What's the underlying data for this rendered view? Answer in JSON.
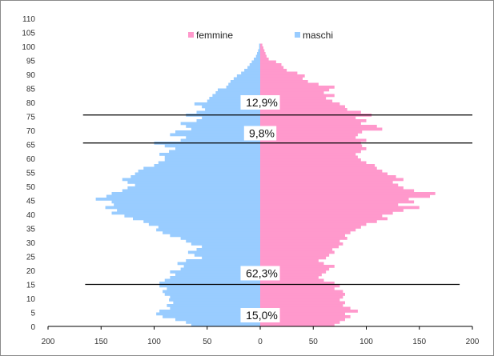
{
  "chart_data": {
    "type": "bar",
    "orientation": "horizontal",
    "subtype": "population-pyramid",
    "title": "",
    "xlabel": "",
    "ylabel": "",
    "xlim": [
      -200,
      200
    ],
    "ylim": [
      0,
      110
    ],
    "x_ticks": [
      "200",
      "150",
      "100",
      "50",
      "0",
      "50",
      "100",
      "150",
      "200"
    ],
    "y_ticks": [
      "0",
      "5",
      "10",
      "15",
      "20",
      "25",
      "30",
      "35",
      "40",
      "45",
      "50",
      "55",
      "60",
      "65",
      "70",
      "75",
      "80",
      "85",
      "90",
      "95",
      "100",
      "105",
      "110"
    ],
    "legend": {
      "placement": "top-center",
      "entries": [
        "femmine",
        "maschi"
      ]
    },
    "colors": {
      "femmine": "#ff99cc",
      "maschi": "#99ccff",
      "lines": "#000000"
    },
    "ages": [
      0,
      1,
      2,
      3,
      4,
      5,
      6,
      7,
      8,
      9,
      10,
      11,
      12,
      13,
      14,
      15,
      16,
      17,
      18,
      19,
      20,
      21,
      22,
      23,
      24,
      25,
      26,
      27,
      28,
      29,
      30,
      31,
      32,
      33,
      34,
      35,
      36,
      37,
      38,
      39,
      40,
      41,
      42,
      43,
      44,
      45,
      46,
      47,
      48,
      49,
      50,
      51,
      52,
      53,
      54,
      55,
      56,
      57,
      58,
      59,
      60,
      61,
      62,
      63,
      64,
      65,
      66,
      67,
      68,
      69,
      70,
      71,
      72,
      73,
      74,
      75,
      76,
      77,
      78,
      79,
      80,
      81,
      82,
      83,
      84,
      85,
      86,
      87,
      88,
      89,
      90,
      91,
      92,
      93,
      94,
      95,
      96,
      97,
      98,
      99,
      100
    ],
    "series": [
      {
        "name": "maschi",
        "values": [
          65,
          70,
          80,
          92,
          98,
          95,
          85,
          88,
          82,
          86,
          85,
          90,
          92,
          88,
          95,
          95,
          90,
          85,
          80,
          85,
          75,
          72,
          78,
          70,
          55,
          62,
          68,
          60,
          55,
          65,
          70,
          75,
          85,
          92,
          98,
          96,
          105,
          110,
          120,
          128,
          140,
          135,
          146,
          138,
          140,
          155,
          145,
          140,
          130,
          125,
          118,
          125,
          130,
          122,
          118,
          115,
          110,
          100,
          96,
          90,
          90,
          95,
          86,
          80,
          90,
          100,
          75,
          70,
          85,
          80,
          65,
          70,
          75,
          60,
          55,
          70,
          60,
          52,
          55,
          62,
          50,
          48,
          45,
          42,
          40,
          32,
          30,
          28,
          25,
          22,
          18,
          15,
          12,
          10,
          8,
          6,
          4,
          3,
          2,
          1,
          1
        ]
      },
      {
        "name": "femmine",
        "values": [
          70,
          75,
          80,
          85,
          80,
          92,
          85,
          78,
          80,
          75,
          78,
          80,
          78,
          70,
          75,
          70,
          60,
          55,
          58,
          62,
          65,
          70,
          60,
          55,
          62,
          65,
          70,
          68,
          74,
          78,
          75,
          82,
          80,
          85,
          90,
          95,
          100,
          110,
          120,
          115,
          125,
          135,
          150,
          130,
          145,
          140,
          160,
          165,
          145,
          135,
          130,
          125,
          135,
          128,
          120,
          115,
          110,
          108,
          100,
          95,
          92,
          90,
          95,
          100,
          96,
          95,
          100,
          90,
          92,
          96,
          115,
          110,
          95,
          100,
          90,
          105,
          95,
          82,
          80,
          75,
          68,
          62,
          70,
          60,
          65,
          70,
          55,
          45,
          40,
          42,
          35,
          25,
          22,
          20,
          15,
          8,
          6,
          5,
          4,
          3,
          2
        ]
      }
    ],
    "annotations": [
      {
        "label": "12,9%",
        "line_age": 75.5,
        "label_age": 80,
        "line_x_left": -167,
        "line_x_right": 200
      },
      {
        "label": "9,8%",
        "line_age": 65.5,
        "label_age": 69,
        "line_x_left": -167,
        "line_x_right": 200
      },
      {
        "label": "62,3%",
        "line_age": 15,
        "label_age": 19,
        "line_x_left": -165,
        "line_x_right": 188
      },
      {
        "label": "15,0%",
        "label_age": 4
      }
    ]
  }
}
